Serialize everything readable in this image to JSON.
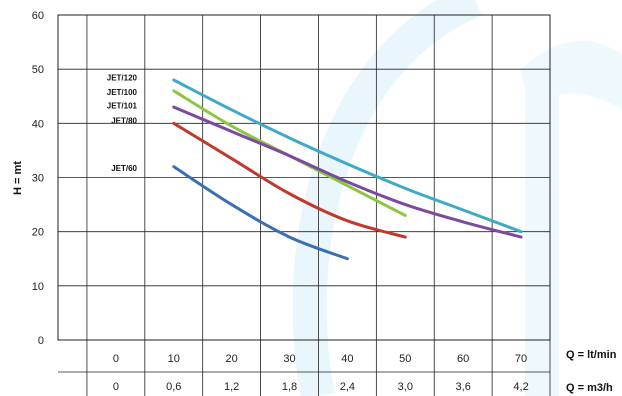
{
  "chart_data": {
    "type": "line",
    "ylabel": "H = mt",
    "xlabel_primary": "Q = lt/min",
    "xlabel_secondary": "Q = m3/h",
    "ylim": [
      0,
      60
    ],
    "xlim": [
      -10,
      75
    ],
    "y_ticks": [
      "0",
      "10",
      "20",
      "30",
      "40",
      "50",
      "60"
    ],
    "x_ticks_primary": [
      {
        "value": 0,
        "label": "0"
      },
      {
        "value": 10,
        "label": "10"
      },
      {
        "value": 20,
        "label": "20"
      },
      {
        "value": 30,
        "label": "30"
      },
      {
        "value": 40,
        "label": "40"
      },
      {
        "value": 50,
        "label": "50"
      },
      {
        "value": 60,
        "label": "60"
      },
      {
        "value": 70,
        "label": "70"
      }
    ],
    "x_ticks_secondary": [
      {
        "value": 0,
        "label": "0"
      },
      {
        "value": 10,
        "label": "0,6"
      },
      {
        "value": 20,
        "label": "1,2"
      },
      {
        "value": 30,
        "label": "1,8"
      },
      {
        "value": 40,
        "label": "2,4"
      },
      {
        "value": 50,
        "label": "3,0"
      },
      {
        "value": 60,
        "label": "3,6"
      },
      {
        "value": 70,
        "label": "4,2"
      }
    ],
    "grid": true,
    "series": [
      {
        "name": "JET/120",
        "color": "#3fa9c9",
        "label_y": 48.5,
        "points": [
          [
            10,
            48
          ],
          [
            20,
            42.5
          ],
          [
            30,
            37.3
          ],
          [
            40,
            32.5
          ],
          [
            50,
            28
          ],
          [
            60,
            24
          ],
          [
            70,
            20
          ]
        ]
      },
      {
        "name": "JET/100",
        "color": "#8dc63f",
        "label_y": 45.8,
        "points": [
          [
            10,
            46
          ],
          [
            20,
            39.5
          ],
          [
            30,
            34
          ],
          [
            40,
            28.5
          ],
          [
            50,
            23
          ]
        ]
      },
      {
        "name": "JET/101",
        "color": "#7b4a9c",
        "label_y": 43.3,
        "points": [
          [
            10,
            43
          ],
          [
            20,
            38.5
          ],
          [
            30,
            34
          ],
          [
            40,
            29.2
          ],
          [
            50,
            25
          ],
          [
            60,
            21.8
          ],
          [
            70,
            19
          ]
        ]
      },
      {
        "name": "JET/80",
        "color": "#c0392b",
        "label_y": 40.5,
        "points": [
          [
            10,
            40
          ],
          [
            20,
            33.5
          ],
          [
            30,
            27
          ],
          [
            40,
            22
          ],
          [
            50,
            19
          ]
        ]
      },
      {
        "name": "JET/60",
        "color": "#3a6fb5",
        "label_y": 31.8,
        "points": [
          [
            10,
            32
          ],
          [
            20,
            25
          ],
          [
            30,
            19
          ],
          [
            40,
            15
          ]
        ]
      }
    ]
  }
}
